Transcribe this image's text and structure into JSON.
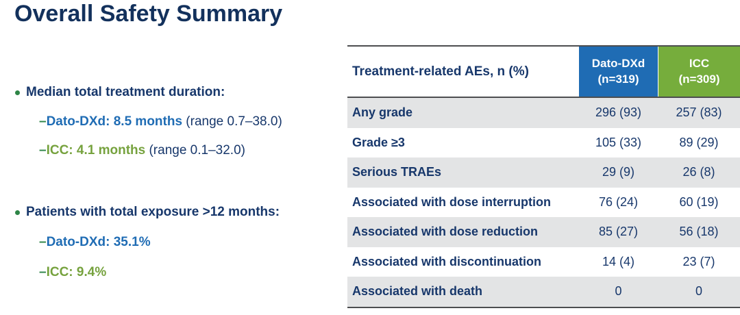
{
  "slide": {
    "title": "Overall Safety Summary"
  },
  "colors": {
    "navy_text": "#17376b",
    "dato_blue": "#1f6cb4",
    "icc_green_header": "#76ad3c",
    "icc_green_text": "#76a23e",
    "marker_green": "#2e8547",
    "row_gray": "#e3e4e5",
    "table_border": "#4c4d4f"
  },
  "bullets": [
    {
      "label": "Median total treatment duration:",
      "items": [
        {
          "dash": "–",
          "text": "Dato-DXd: 8.5 months",
          "suffix": " (range 0.7–38.0)"
        },
        {
          "dash": "–",
          "text": "ICC: 4.1 months",
          "suffix": " (range 0.1–32.0)"
        }
      ]
    },
    {
      "label": "Patients with total exposure >12 months:",
      "items": [
        {
          "dash": "–",
          "text": "Dato-DXd: 35.1%",
          "suffix": ""
        },
        {
          "dash": "–",
          "text": "ICC: 9.4%",
          "suffix": ""
        }
      ]
    }
  ],
  "table": {
    "header": {
      "label": "Treatment-related AEs, n (%)",
      "dato_line1": "Dato-DXd",
      "dato_line2": "(n=319)",
      "icc_line1": "ICC",
      "icc_line2": "(n=309)"
    },
    "rows": [
      {
        "label": "Any grade",
        "dato": "296 (93)",
        "icc": "257 (83)"
      },
      {
        "label": "Grade ≥3",
        "dato": "105 (33)",
        "icc": "89 (29)"
      },
      {
        "label": "Serious TRAEs",
        "dato": "29 (9)",
        "icc": "26 (8)"
      },
      {
        "label": "Associated with dose interruption",
        "dato": "76 (24)",
        "icc": "60 (19)"
      },
      {
        "label": "Associated with dose reduction",
        "dato": "85 (27)",
        "icc": "56 (18)"
      },
      {
        "label": "Associated with discontinuation",
        "dato": "14 (4)",
        "icc": "23 (7)"
      },
      {
        "label": "Associated with death",
        "dato": "0",
        "icc": "0"
      }
    ]
  }
}
